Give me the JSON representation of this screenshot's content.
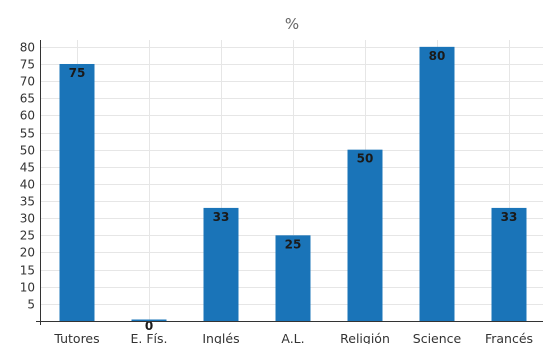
{
  "chart_data": {
    "type": "bar",
    "title": "%",
    "xlabel": "",
    "ylabel": "",
    "categories": [
      "Tutores",
      "E. Fís.",
      "Inglés",
      "A.L.",
      "Religión",
      "Science",
      "Francés"
    ],
    "values": [
      75,
      0,
      33,
      25,
      50,
      80,
      33
    ],
    "data_labels": [
      "75",
      "0",
      "33",
      "25",
      "50",
      "80",
      "33"
    ],
    "ylim": [
      0,
      82
    ],
    "yticks": [
      5,
      10,
      15,
      20,
      25,
      30,
      35,
      40,
      45,
      50,
      55,
      60,
      65,
      70,
      75,
      80
    ],
    "grid": true,
    "bar_color": "#1a74b8"
  }
}
